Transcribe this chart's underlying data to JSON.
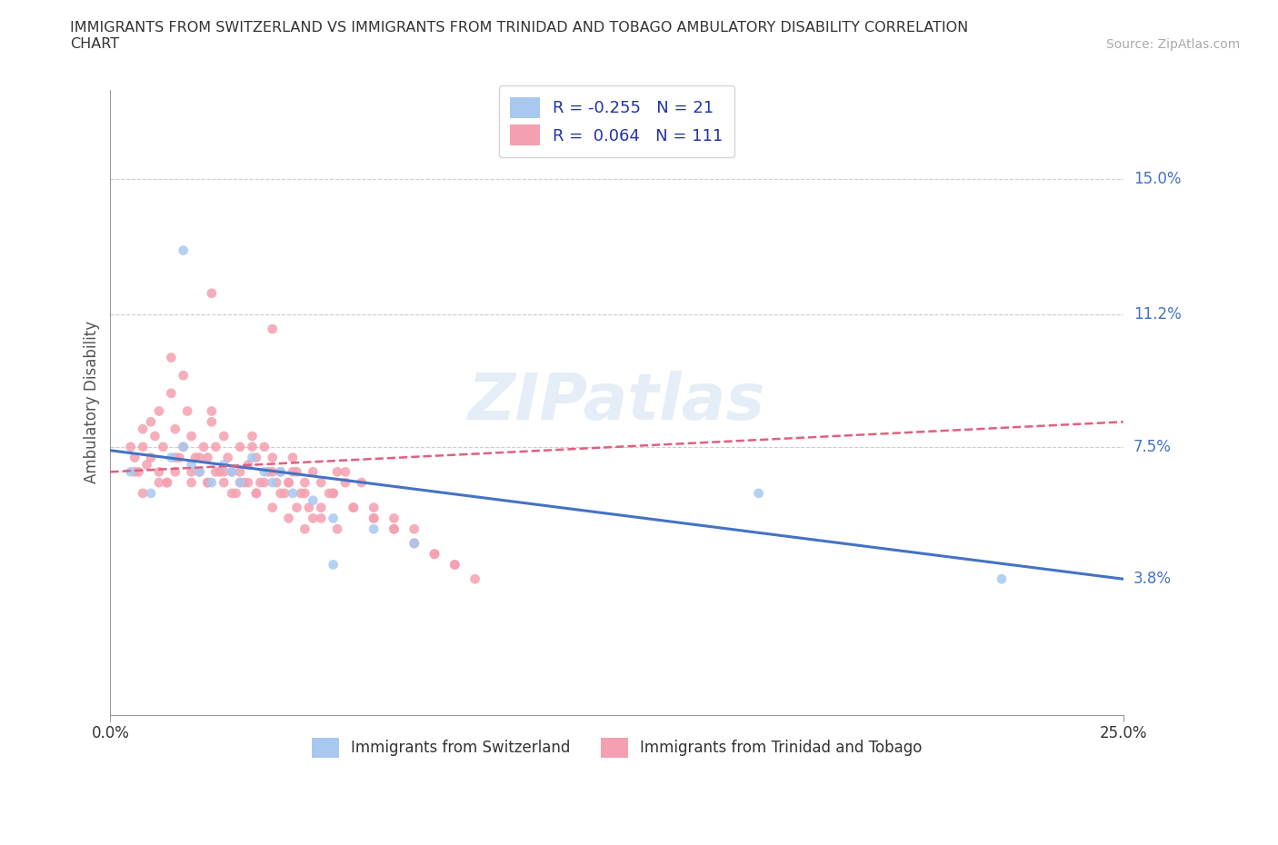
{
  "title": "IMMIGRANTS FROM SWITZERLAND VS IMMIGRANTS FROM TRINIDAD AND TOBAGO AMBULATORY DISABILITY CORRELATION\nCHART",
  "source_text": "Source: ZipAtlas.com",
  "ylabel": "Ambulatory Disability",
  "xmin": 0.0,
  "xmax": 0.25,
  "ymin": 0.0,
  "ymax": 0.175,
  "switzerland_color": "#a8c8f0",
  "trinidad_color": "#f4a0b0",
  "switzerland_line_color": "#4472c4",
  "trinidad_line_color": "#e06080",
  "right_label_color": "#4472c4",
  "R_switzerland": -0.255,
  "N_switzerland": 21,
  "R_trinidad": 0.064,
  "N_trinidad": 111,
  "watermark": "ZIPatlas",
  "legend_label_switzerland": "Immigrants from Switzerland",
  "legend_label_trinidad": "Immigrants from Trinidad and Tobago",
  "grid_color": "#cccccc",
  "ytick_positions": [
    0.075,
    0.112,
    0.15
  ],
  "ytick_right_positions": [
    0.038,
    0.075,
    0.112,
    0.15
  ],
  "ytick_right_labels": [
    "3.8%",
    "7.5%",
    "11.2%",
    "15.0%"
  ],
  "sw_x": [
    0.005,
    0.01,
    0.015,
    0.018,
    0.02,
    0.022,
    0.025,
    0.028,
    0.03,
    0.032,
    0.035,
    0.038,
    0.04,
    0.042,
    0.045,
    0.05,
    0.055,
    0.065,
    0.075,
    0.16,
    0.22
  ],
  "sw_y": [
    0.068,
    0.062,
    0.072,
    0.075,
    0.07,
    0.068,
    0.065,
    0.07,
    0.068,
    0.065,
    0.072,
    0.068,
    0.065,
    0.068,
    0.062,
    0.06,
    0.055,
    0.052,
    0.048,
    0.062,
    0.038
  ],
  "sw_outlier_x": [
    0.018
  ],
  "sw_outlier_y": [
    0.13
  ],
  "sw_low_x": [
    0.055
  ],
  "sw_low_y": [
    0.042
  ],
  "tt_x": [
    0.005,
    0.006,
    0.007,
    0.008,
    0.009,
    0.01,
    0.011,
    0.012,
    0.013,
    0.014,
    0.015,
    0.016,
    0.017,
    0.018,
    0.019,
    0.02,
    0.021,
    0.022,
    0.023,
    0.024,
    0.025,
    0.026,
    0.027,
    0.028,
    0.029,
    0.03,
    0.031,
    0.032,
    0.033,
    0.034,
    0.035,
    0.036,
    0.037,
    0.038,
    0.039,
    0.04,
    0.041,
    0.042,
    0.043,
    0.044,
    0.045,
    0.046,
    0.047,
    0.048,
    0.049,
    0.05,
    0.052,
    0.054,
    0.056,
    0.058,
    0.006,
    0.008,
    0.01,
    0.012,
    0.014,
    0.016,
    0.018,
    0.02,
    0.022,
    0.024,
    0.026,
    0.028,
    0.03,
    0.032,
    0.034,
    0.036,
    0.038,
    0.04,
    0.042,
    0.044,
    0.046,
    0.048,
    0.05,
    0.052,
    0.055,
    0.058,
    0.062,
    0.065,
    0.07,
    0.075,
    0.008,
    0.012,
    0.016,
    0.02,
    0.024,
    0.028,
    0.032,
    0.036,
    0.04,
    0.044,
    0.048,
    0.052,
    0.056,
    0.06,
    0.065,
    0.07,
    0.075,
    0.08,
    0.085,
    0.09,
    0.015,
    0.025,
    0.035,
    0.045,
    0.055,
    0.06,
    0.065,
    0.07,
    0.075,
    0.08,
    0.085
  ],
  "tt_y": [
    0.075,
    0.072,
    0.068,
    0.08,
    0.07,
    0.082,
    0.078,
    0.085,
    0.075,
    0.065,
    0.09,
    0.08,
    0.072,
    0.095,
    0.085,
    0.078,
    0.072,
    0.068,
    0.075,
    0.065,
    0.082,
    0.075,
    0.068,
    0.078,
    0.072,
    0.068,
    0.062,
    0.075,
    0.065,
    0.07,
    0.078,
    0.072,
    0.065,
    0.075,
    0.068,
    0.072,
    0.065,
    0.068,
    0.062,
    0.065,
    0.072,
    0.068,
    0.062,
    0.065,
    0.058,
    0.068,
    0.065,
    0.062,
    0.068,
    0.065,
    0.068,
    0.075,
    0.072,
    0.068,
    0.065,
    0.072,
    0.075,
    0.068,
    0.072,
    0.065,
    0.068,
    0.065,
    0.062,
    0.068,
    0.065,
    0.062,
    0.065,
    0.068,
    0.062,
    0.065,
    0.058,
    0.062,
    0.055,
    0.058,
    0.062,
    0.068,
    0.065,
    0.058,
    0.055,
    0.052,
    0.062,
    0.065,
    0.068,
    0.065,
    0.072,
    0.068,
    0.065,
    0.062,
    0.058,
    0.055,
    0.052,
    0.055,
    0.052,
    0.058,
    0.055,
    0.052,
    0.048,
    0.045,
    0.042,
    0.038,
    0.1,
    0.085,
    0.075,
    0.068,
    0.062,
    0.058,
    0.055,
    0.052,
    0.048,
    0.045,
    0.042
  ],
  "tt_outlier1_x": [
    0.025
  ],
  "tt_outlier1_y": [
    0.118
  ],
  "tt_outlier2_x": [
    0.04
  ],
  "tt_outlier2_y": [
    0.108
  ]
}
